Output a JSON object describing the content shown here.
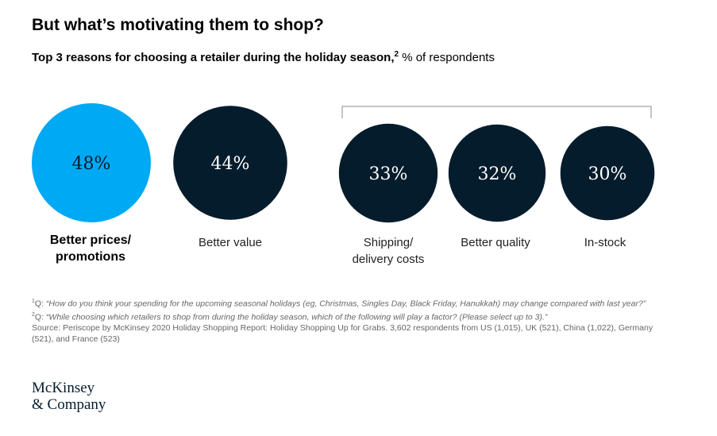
{
  "title": "But what’s motivating them to shop?",
  "subtitle": {
    "bold": "Top 3 reasons for choosing a retailer during the holiday season,",
    "footnote_ref": "2",
    "unit": " % of respondents"
  },
  "colors": {
    "highlight": "#00a9f4",
    "primary": "#051c2c",
    "bracket": "#b3b3b3"
  },
  "chart_data": {
    "type": "bubble",
    "title": "Top 3 reasons for choosing a retailer during the holiday season",
    "unit": "% of respondents",
    "categories": [
      "Better prices/ promotions",
      "Better value",
      "Shipping/ delivery costs",
      "Better quality",
      "In-stock"
    ],
    "labels": [
      "48%",
      "44%",
      "33%",
      "32%",
      "30%"
    ],
    "values": [
      48,
      44,
      33,
      32,
      30
    ],
    "highlighted_index": 0,
    "bracket_group": [
      2,
      3,
      4
    ]
  },
  "categories_display": [
    {
      "line1": "Better prices/",
      "line2": "promotions"
    },
    {
      "line1": "Better value",
      "line2": ""
    },
    {
      "line1": "Shipping/",
      "line2": "delivery costs"
    },
    {
      "line1": "Better quality",
      "line2": ""
    },
    {
      "line1": "In-stock",
      "line2": ""
    }
  ],
  "footnotes": {
    "f1_ref": "1",
    "f1_prefix": "Q: ",
    "f1_text": "“How do you think your spending for the upcoming seasonal holidays (eg, Christmas, Singles Day, Black Friday, Hanukkah) may change compared with last year?”",
    "f2_ref": "2",
    "f2_prefix": "Q: ",
    "f2_text": "“While choosing which retailers to shop from during the holiday season, which of the following will play a factor? (Please select up to 3).”",
    "source": "Source: Periscope by McKinsey 2020 Holiday Shopping Report: Holiday Shopping Up for Grabs. 3,602 respondents from US (1,015), UK (521), China (1,022), Germany (521), and France (523)"
  },
  "logo": {
    "line1": "McKinsey",
    "line2": "& Company"
  }
}
